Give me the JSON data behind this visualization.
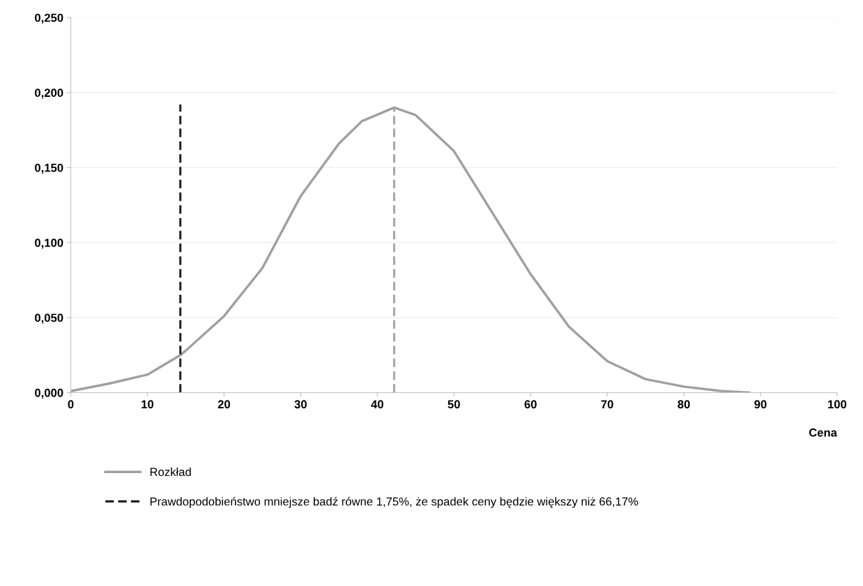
{
  "chart_data": {
    "type": "line",
    "xlabel": "Cena",
    "xlim": [
      0,
      100
    ],
    "xticks": [
      0,
      10,
      20,
      30,
      40,
      50,
      60,
      70,
      80,
      90,
      100
    ],
    "ylim": [
      0,
      0.25
    ],
    "yticks": [
      {
        "value": 0,
        "label": "0,000"
      },
      {
        "value": 0.05,
        "label": "0,050"
      },
      {
        "value": 0.1,
        "label": "0,100"
      },
      {
        "value": 0.15,
        "label": "0,150"
      },
      {
        "value": 0.2,
        "label": "0,200"
      },
      {
        "value": 0.25,
        "label": "0,250"
      }
    ],
    "grid": "y",
    "legend": "bottom",
    "series": [
      {
        "name": "Rozkład",
        "color": "#a0a0a0",
        "line_style": "solid",
        "x": [
          0,
          5,
          10,
          14.3,
          15,
          20,
          25,
          30,
          35,
          38,
          42.2,
          45,
          50,
          55,
          60,
          65,
          70,
          75,
          80,
          85,
          88.5
        ],
        "values": [
          0.001,
          0.006,
          0.012,
          0.025,
          0.028,
          0.051,
          0.083,
          0.131,
          0.166,
          0.181,
          0.19,
          0.185,
          0.161,
          0.12,
          0.079,
          0.044,
          0.021,
          0.009,
          0.004,
          0.001,
          0
        ]
      },
      {
        "name": "Prawdopodobieństwo mniejsze badź równe 1,75%, że spadek ceny będzie większy niż 66,17%",
        "color": "#222222",
        "line_style": "dashed",
        "x": [
          14.3,
          14.3
        ],
        "values": [
          0,
          0.192
        ]
      },
      {
        "color": "#a6a6a6",
        "line_style": "dashed",
        "x": [
          42.2,
          42.2
        ],
        "values": [
          0,
          0.19
        ]
      }
    ]
  }
}
